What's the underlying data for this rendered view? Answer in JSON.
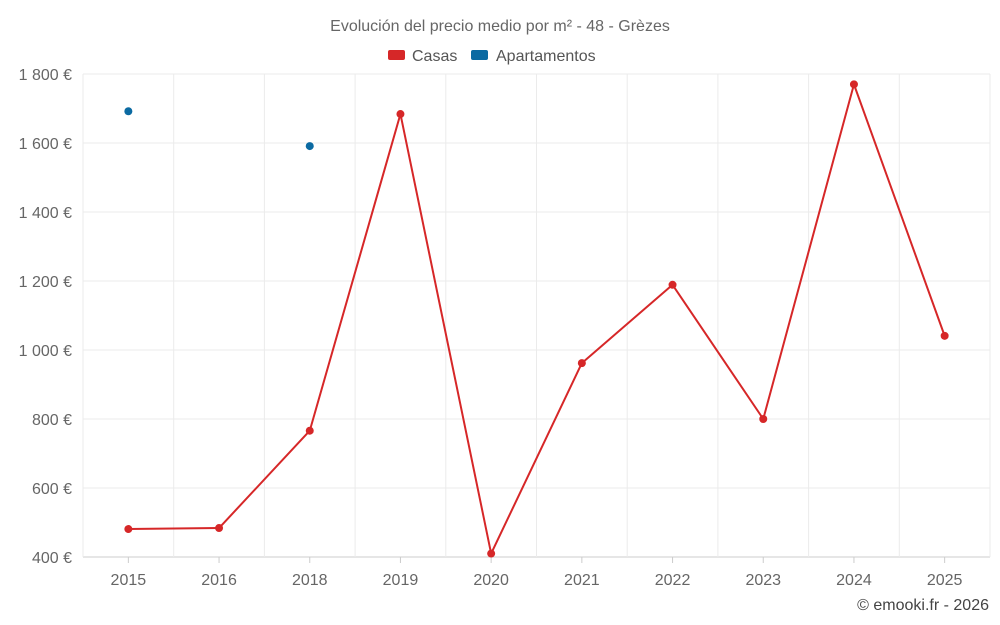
{
  "chart_data": {
    "type": "line",
    "title": "Evolución del precio medio por m² - 48 - Grèzes",
    "categories": [
      "2015",
      "2016",
      "2018",
      "2019",
      "2020",
      "2021",
      "2022",
      "2023",
      "2024",
      "2025"
    ],
    "series": [
      {
        "name": "Casas",
        "color": "#d62728",
        "values": [
          481,
          484,
          766,
          1684,
          410,
          962,
          1189,
          800,
          1770,
          1041
        ]
      },
      {
        "name": "Apartamentos",
        "color": "#0b6aa2",
        "values": [
          1692,
          null,
          1591,
          null,
          null,
          null,
          null,
          null,
          null,
          null
        ]
      }
    ],
    "xlabel": "",
    "ylabel": "",
    "ylim": [
      400,
      1800
    ],
    "yticks": [
      400,
      600,
      800,
      1000,
      1200,
      1400,
      1600,
      1800
    ],
    "ytick_labels": [
      "400 €",
      "600 €",
      "800 €",
      "1 000 €",
      "1 200 €",
      "1 400 €",
      "1 600 €",
      "1 800 €"
    ],
    "grid": true,
    "legend_position": "top-center",
    "credit": "© emooki.fr - 2026"
  }
}
